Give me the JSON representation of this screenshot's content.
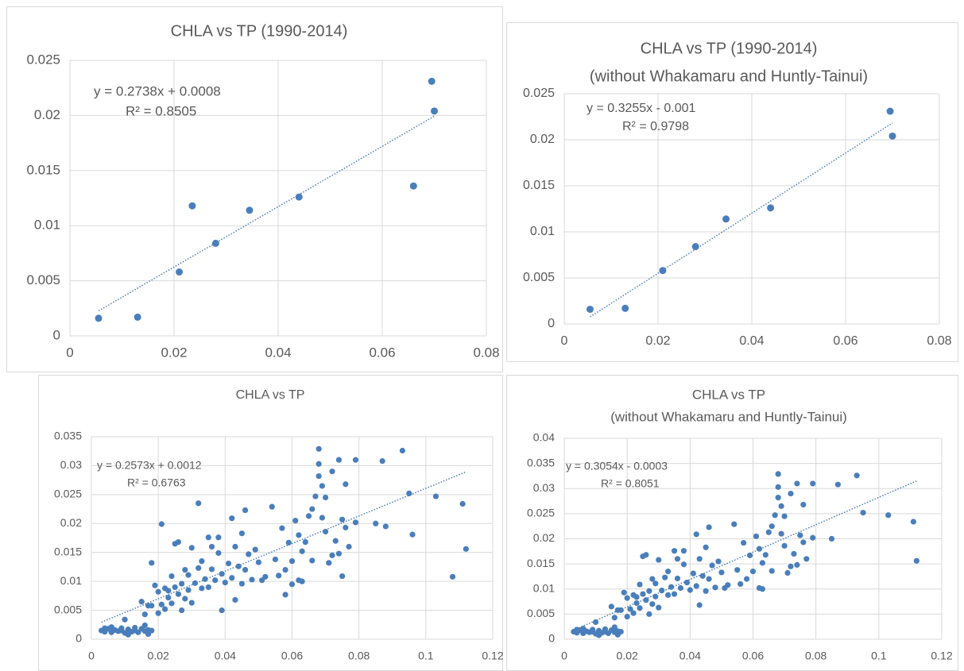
{
  "chart_data": [
    {
      "type": "scatter",
      "title": "CHLA vs TP (1990-2014)",
      "annotations": [
        "y = 0.2738x + 0.0008",
        "R² = 0.8505"
      ],
      "x": [
        0.0055,
        0.013,
        0.021,
        0.0235,
        0.028,
        0.0345,
        0.044,
        0.066,
        0.0695,
        0.07
      ],
      "values": [
        0.0016,
        0.0017,
        0.0058,
        0.0118,
        0.0084,
        0.0114,
        0.0126,
        0.0136,
        0.0231,
        0.0204
      ],
      "color": "#4a7ebb",
      "xlim": [
        0,
        0.08
      ],
      "ylim": [
        0,
        0.025
      ],
      "xticks": [
        0,
        0.02,
        0.04,
        0.06,
        0.08
      ],
      "yticks": [
        0,
        0.005,
        0.01,
        0.015,
        0.02,
        0.025
      ],
      "grid": true
    },
    {
      "type": "scatter",
      "title": "CHLA vs TP (1990-2014)",
      "subtitle": "(without Whakamaru and Huntly-Tainui)",
      "annotations": [
        "y = 0.3255x - 0.001",
        "R² = 0.9798"
      ],
      "x": [
        0.0055,
        0.013,
        0.021,
        0.028,
        0.0345,
        0.044,
        0.0695,
        0.07
      ],
      "values": [
        0.0016,
        0.0017,
        0.0058,
        0.0084,
        0.0114,
        0.0126,
        0.0231,
        0.0204
      ],
      "color": "#4a7ebb",
      "xlim": [
        0,
        0.08
      ],
      "ylim": [
        0,
        0.025
      ],
      "xticks": [
        0,
        0.02,
        0.04,
        0.06,
        0.08
      ],
      "yticks": [
        0,
        0.005,
        0.01,
        0.015,
        0.02,
        0.025
      ],
      "grid": true
    },
    {
      "type": "scatter",
      "title": "CHLA vs TP",
      "annotations": [
        "y = 0.2573x + 0.0012",
        "R² = 0.6763"
      ],
      "x": [
        0.003,
        0.004,
        0.005,
        0.006,
        0.007,
        0.008,
        0.009,
        0.01,
        0.011,
        0.012,
        0.013,
        0.014,
        0.015,
        0.016,
        0.017,
        0.018,
        0.004,
        0.006,
        0.009,
        0.01,
        0.011,
        0.013,
        0.016,
        0.017,
        0.015,
        0.016,
        0.017,
        0.018,
        0.018,
        0.019,
        0.02,
        0.02,
        0.021,
        0.021,
        0.022,
        0.022,
        0.023,
        0.023,
        0.024,
        0.024,
        0.025,
        0.025,
        0.026,
        0.026,
        0.027,
        0.027,
        0.028,
        0.028,
        0.029,
        0.029,
        0.03,
        0.03,
        0.031,
        0.032,
        0.032,
        0.033,
        0.033,
        0.034,
        0.035,
        0.035,
        0.036,
        0.036,
        0.037,
        0.038,
        0.038,
        0.039,
        0.039,
        0.04,
        0.041,
        0.042,
        0.042,
        0.043,
        0.043,
        0.044,
        0.045,
        0.045,
        0.046,
        0.046,
        0.047,
        0.048,
        0.049,
        0.05,
        0.051,
        0.052,
        0.054,
        0.055,
        0.056,
        0.057,
        0.058,
        0.058,
        0.059,
        0.06,
        0.06,
        0.061,
        0.062,
        0.062,
        0.063,
        0.063,
        0.064,
        0.065,
        0.066,
        0.066,
        0.067,
        0.068,
        0.068,
        0.068,
        0.069,
        0.069,
        0.07,
        0.07,
        0.071,
        0.072,
        0.072,
        0.073,
        0.074,
        0.074,
        0.075,
        0.075,
        0.076,
        0.076,
        0.077,
        0.079,
        0.079,
        0.085,
        0.087,
        0.088,
        0.093,
        0.095,
        0.096,
        0.103,
        0.108,
        0.111,
        0.112
      ],
      "values": [
        0.0015,
        0.0013,
        0.0018,
        0.0012,
        0.0016,
        0.0014,
        0.0019,
        0.0011,
        0.0017,
        0.0013,
        0.0015,
        0.0012,
        0.0018,
        0.0014,
        0.0016,
        0.0015,
        0.0019,
        0.0021,
        0.0015,
        0.0034,
        0.0008,
        0.002,
        0.0024,
        0.0009,
        0.0065,
        0.0043,
        0.0058,
        0.0058,
        0.0132,
        0.0093,
        0.0045,
        0.0082,
        0.0199,
        0.006,
        0.0088,
        0.0052,
        0.0072,
        0.0084,
        0.0109,
        0.0062,
        0.0165,
        0.009,
        0.0168,
        0.0078,
        0.005,
        0.0096,
        0.012,
        0.007,
        0.0111,
        0.0085,
        0.0158,
        0.0063,
        0.0097,
        0.0235,
        0.0123,
        0.0088,
        0.0135,
        0.0104,
        0.0176,
        0.009,
        0.016,
        0.0121,
        0.0102,
        0.0149,
        0.0176,
        0.005,
        0.0113,
        0.0098,
        0.0131,
        0.0209,
        0.0106,
        0.0068,
        0.016,
        0.0126,
        0.0183,
        0.0096,
        0.0223,
        0.012,
        0.0147,
        0.0103,
        0.0155,
        0.0133,
        0.0102,
        0.0108,
        0.0229,
        0.0138,
        0.011,
        0.0192,
        0.0077,
        0.012,
        0.0167,
        0.0095,
        0.0135,
        0.0205,
        0.018,
        0.0102,
        0.01,
        0.0152,
        0.0168,
        0.0213,
        0.0136,
        0.0225,
        0.0247,
        0.0329,
        0.0303,
        0.0282,
        0.0265,
        0.021,
        0.0186,
        0.0245,
        0.0132,
        0.029,
        0.0145,
        0.017,
        0.031,
        0.0148,
        0.0207,
        0.0109,
        0.0268,
        0.0193,
        0.016,
        0.031,
        0.0202,
        0.02,
        0.0308,
        0.0195,
        0.0326,
        0.0252,
        0.0181,
        0.0247,
        0.0108,
        0.0234,
        0.0156
      ],
      "color": "#4a7ebb",
      "xlim": [
        0,
        0.12
      ],
      "ylim": [
        0,
        0.035
      ],
      "xticks": [
        0,
        0.02,
        0.04,
        0.06,
        0.08,
        0.1,
        0.12
      ],
      "yticks": [
        0,
        0.005,
        0.01,
        0.015,
        0.02,
        0.025,
        0.03,
        0.035
      ],
      "grid": true
    },
    {
      "type": "scatter",
      "title": "CHLA vs TP",
      "subtitle": "(without Whakamaru and Huntly-Tainui)",
      "annotations": [
        "y = 0.3054x - 0.0003",
        "R² = 0.8051"
      ],
      "x": [
        0.003,
        0.004,
        0.005,
        0.006,
        0.007,
        0.008,
        0.009,
        0.01,
        0.011,
        0.012,
        0.013,
        0.014,
        0.015,
        0.016,
        0.017,
        0.018,
        0.004,
        0.006,
        0.009,
        0.01,
        0.011,
        0.013,
        0.016,
        0.017,
        0.015,
        0.016,
        0.017,
        0.018,
        0.019,
        0.02,
        0.02,
        0.021,
        0.022,
        0.022,
        0.023,
        0.023,
        0.024,
        0.024,
        0.025,
        0.025,
        0.026,
        0.026,
        0.027,
        0.027,
        0.028,
        0.028,
        0.029,
        0.029,
        0.03,
        0.03,
        0.031,
        0.032,
        0.033,
        0.033,
        0.034,
        0.035,
        0.035,
        0.036,
        0.036,
        0.037,
        0.038,
        0.038,
        0.039,
        0.04,
        0.041,
        0.042,
        0.042,
        0.043,
        0.043,
        0.044,
        0.045,
        0.045,
        0.046,
        0.046,
        0.047,
        0.048,
        0.049,
        0.05,
        0.051,
        0.052,
        0.054,
        0.055,
        0.056,
        0.057,
        0.058,
        0.059,
        0.06,
        0.061,
        0.062,
        0.062,
        0.063,
        0.063,
        0.064,
        0.065,
        0.066,
        0.066,
        0.067,
        0.068,
        0.068,
        0.068,
        0.069,
        0.069,
        0.07,
        0.07,
        0.071,
        0.072,
        0.072,
        0.073,
        0.074,
        0.074,
        0.075,
        0.076,
        0.076,
        0.077,
        0.079,
        0.079,
        0.085,
        0.087,
        0.093,
        0.095,
        0.103,
        0.111,
        0.112
      ],
      "values": [
        0.0015,
        0.0013,
        0.0018,
        0.0012,
        0.0016,
        0.0014,
        0.0019,
        0.0011,
        0.0017,
        0.0013,
        0.0015,
        0.0012,
        0.0018,
        0.0014,
        0.0016,
        0.0015,
        0.0019,
        0.0021,
        0.0015,
        0.0034,
        0.0008,
        0.002,
        0.0024,
        0.0009,
        0.0065,
        0.0043,
        0.0058,
        0.0058,
        0.0093,
        0.0045,
        0.0082,
        0.006,
        0.0088,
        0.0052,
        0.0072,
        0.0084,
        0.0109,
        0.0062,
        0.0165,
        0.009,
        0.0168,
        0.0078,
        0.005,
        0.0096,
        0.012,
        0.007,
        0.0111,
        0.0085,
        0.0158,
        0.0063,
        0.0097,
        0.0123,
        0.0088,
        0.0135,
        0.0104,
        0.0176,
        0.009,
        0.016,
        0.0121,
        0.0102,
        0.0149,
        0.0176,
        0.0113,
        0.0098,
        0.0131,
        0.0209,
        0.0106,
        0.0068,
        0.016,
        0.0126,
        0.0183,
        0.0096,
        0.0223,
        0.012,
        0.0147,
        0.0103,
        0.0155,
        0.0133,
        0.0102,
        0.0108,
        0.0229,
        0.0138,
        0.011,
        0.0192,
        0.012,
        0.0167,
        0.0135,
        0.0205,
        0.018,
        0.0102,
        0.01,
        0.0152,
        0.0168,
        0.0213,
        0.0136,
        0.0225,
        0.0247,
        0.0329,
        0.0303,
        0.0282,
        0.0265,
        0.021,
        0.0186,
        0.0245,
        0.0132,
        0.029,
        0.0145,
        0.017,
        0.031,
        0.0148,
        0.0207,
        0.0268,
        0.0193,
        0.016,
        0.031,
        0.0202,
        0.02,
        0.0308,
        0.0326,
        0.0252,
        0.0247,
        0.0234,
        0.0156
      ],
      "color": "#4a7ebb",
      "xlim": [
        0,
        0.12
      ],
      "ylim": [
        0,
        0.04
      ],
      "xticks": [
        0,
        0.02,
        0.04,
        0.06,
        0.08,
        0.1,
        0.12
      ],
      "yticks": [
        0,
        0.005,
        0.01,
        0.015,
        0.02,
        0.025,
        0.03,
        0.035,
        0.04
      ],
      "grid": true
    }
  ]
}
